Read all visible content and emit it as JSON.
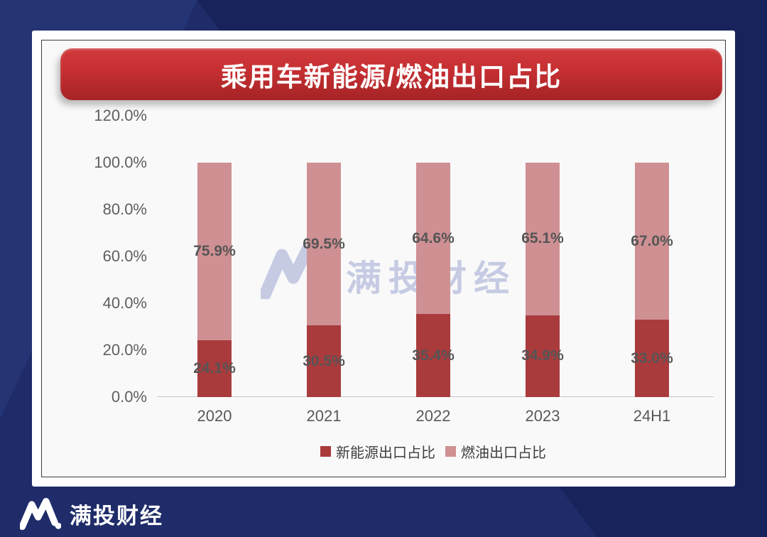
{
  "title": "乘用车新能源/燃油出口占比",
  "watermark": {
    "text": "满投财经"
  },
  "brand": {
    "name": "满投财经"
  },
  "colors": {
    "background_base": "#1f2c69",
    "background_light": "#253475",
    "background_dark": "#18235c",
    "banner_red_top": "#d03a3c",
    "banner_red_bottom": "#a52325",
    "nev_bar": "#a93b3d",
    "fuel_bar": "#cf9093",
    "label_gray": "#555555",
    "watermark_color": "#c4c9e2"
  },
  "chart_data": {
    "type": "bar",
    "stacked": true,
    "title": "乘用车新能源/燃油出口占比",
    "categories": [
      "2020",
      "2021",
      "2022",
      "2023",
      "24H1"
    ],
    "series": [
      {
        "name": "新能源出口占比",
        "color": "#a93b3d",
        "values": [
          24.1,
          30.5,
          35.4,
          34.9,
          33.0
        ]
      },
      {
        "name": "燃油出口占比",
        "color": "#cf9093",
        "values": [
          75.9,
          69.5,
          64.6,
          65.1,
          67.0
        ]
      }
    ],
    "y_ticks": [
      "120.0%",
      "100.0%",
      "80.0%",
      "60.0%",
      "40.0%",
      "20.0%",
      "0.0%"
    ],
    "ylim": [
      0,
      120
    ],
    "value_suffix": "%",
    "grid": false,
    "legend_position": "bottom"
  }
}
